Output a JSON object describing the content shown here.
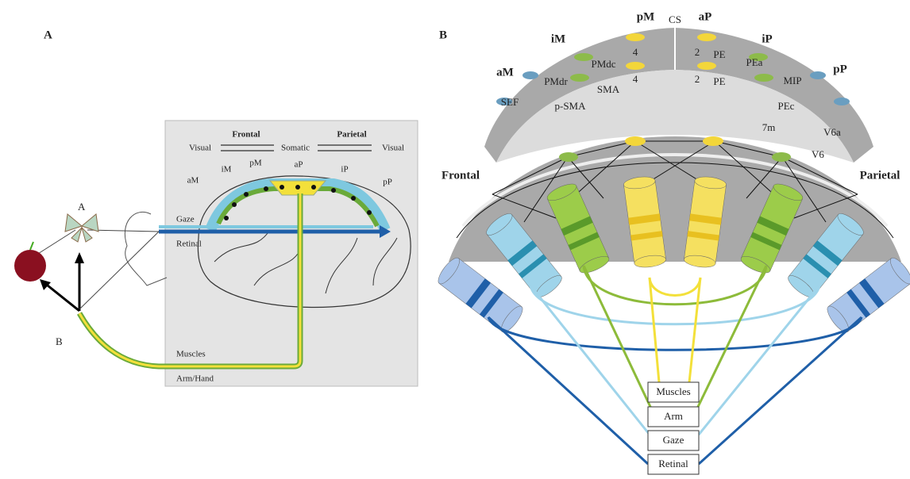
{
  "panel_a": {
    "label": "A",
    "target_a": "A",
    "target_b": "B",
    "header": {
      "frontal": "Frontal",
      "parietal": "Parietal",
      "visual_left": "Visual",
      "somatic": "Somatic",
      "visual_right": "Visual"
    },
    "areas": [
      "aM",
      "iM",
      "pM",
      "aP",
      "iP",
      "pP"
    ],
    "signals": {
      "gaze": "Gaze",
      "retinal": "Retinal",
      "muscles": "Muscles",
      "arm_hand": "Arm/Hand"
    }
  },
  "panel_b": {
    "label": "B",
    "top_labels": {
      "pM": "pM",
      "cs": "CS",
      "aP": "aP",
      "iM": "iM",
      "iP": "iP",
      "aM": "aM",
      "pP": "pP"
    },
    "areas": [
      "PMdc",
      "4",
      "2",
      "PE",
      "PEa",
      "PMdr",
      "4",
      "2",
      "PE",
      "MIP",
      "SMA",
      "SEF",
      "p-SMA",
      "PEc",
      "7m",
      "V6a",
      "V6"
    ],
    "sides": {
      "frontal": "Frontal",
      "parietal": "Parietal"
    },
    "boxes": [
      "Muscles",
      "Arm",
      "Gaze",
      "Retinal"
    ]
  }
}
